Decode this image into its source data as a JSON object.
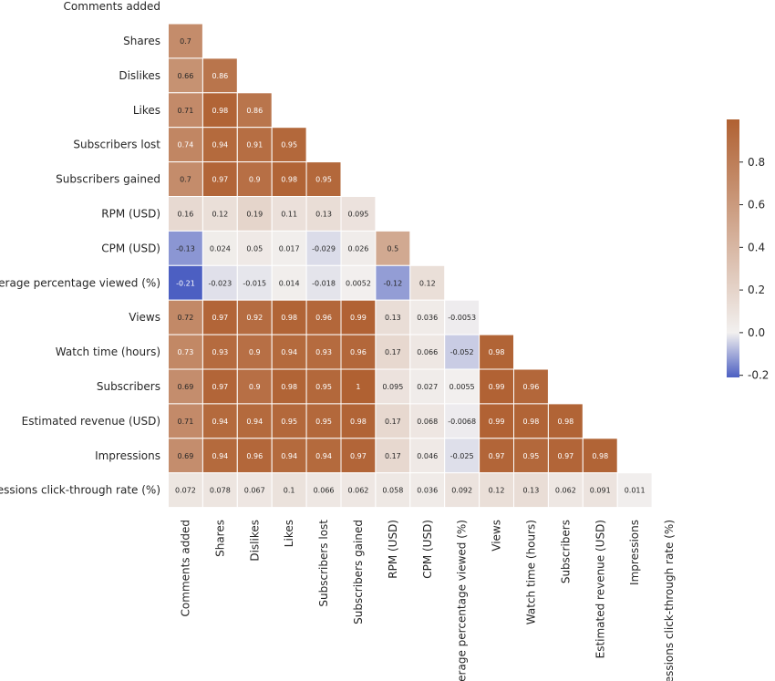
{
  "chart_data": {
    "type": "heatmap",
    "variables": [
      "Comments added",
      "Shares",
      "Dislikes",
      "Likes",
      "Subscribers lost",
      "Subscribers gained",
      "RPM (USD)",
      "CPM (USD)",
      "Average percentage viewed (%)",
      "Views",
      "Watch time (hours)",
      "Subscribers",
      "Estimated revenue (USD)",
      "Impressions",
      "Impressions click-through rate (%)"
    ],
    "values": [
      [],
      [
        "0.7"
      ],
      [
        "0.66",
        "0.86"
      ],
      [
        "0.71",
        "0.98",
        "0.86"
      ],
      [
        "0.74",
        "0.94",
        "0.91",
        "0.95"
      ],
      [
        "0.7",
        "0.97",
        "0.9",
        "0.98",
        "0.95"
      ],
      [
        "0.16",
        "0.12",
        "0.19",
        "0.11",
        "0.13",
        "0.095"
      ],
      [
        "-0.13",
        "0.024",
        "0.05",
        "0.017",
        "-0.029",
        "0.026",
        "0.5"
      ],
      [
        "-0.21",
        "-0.023",
        "-0.015",
        "0.014",
        "-0.018",
        "0.0052",
        "-0.12",
        "0.12"
      ],
      [
        "0.72",
        "0.97",
        "0.92",
        "0.98",
        "0.96",
        "0.99",
        "0.13",
        "0.036",
        "-0.0053"
      ],
      [
        "0.73",
        "0.93",
        "0.9",
        "0.94",
        "0.93",
        "0.96",
        "0.17",
        "0.066",
        "-0.052",
        "0.98"
      ],
      [
        "0.69",
        "0.97",
        "0.9",
        "0.98",
        "0.95",
        "1",
        "0.095",
        "0.027",
        "0.0055",
        "0.99",
        "0.96"
      ],
      [
        "0.71",
        "0.94",
        "0.94",
        "0.95",
        "0.95",
        "0.98",
        "0.17",
        "0.068",
        "-0.0068",
        "0.99",
        "0.98",
        "0.98"
      ],
      [
        "0.69",
        "0.94",
        "0.96",
        "0.94",
        "0.94",
        "0.97",
        "0.17",
        "0.046",
        "-0.025",
        "0.97",
        "0.95",
        "0.97",
        "0.98"
      ],
      [
        "0.072",
        "0.078",
        "0.067",
        "0.1",
        "0.066",
        "0.062",
        "0.058",
        "0.036",
        "0.092",
        "0.12",
        "0.13",
        "0.062",
        "0.091",
        "0.011"
      ]
    ],
    "mask": "upper-triangle-and-diagonal",
    "colorbar": {
      "range": [
        -0.21,
        1.0
      ],
      "ticks": [
        "0.8",
        "0.6",
        "0.4",
        "0.2",
        "0.0",
        "-0.2"
      ],
      "colors": {
        "negative": "#4c5fc2",
        "center": "#f2f0ef",
        "positive": "#b06132"
      }
    }
  }
}
